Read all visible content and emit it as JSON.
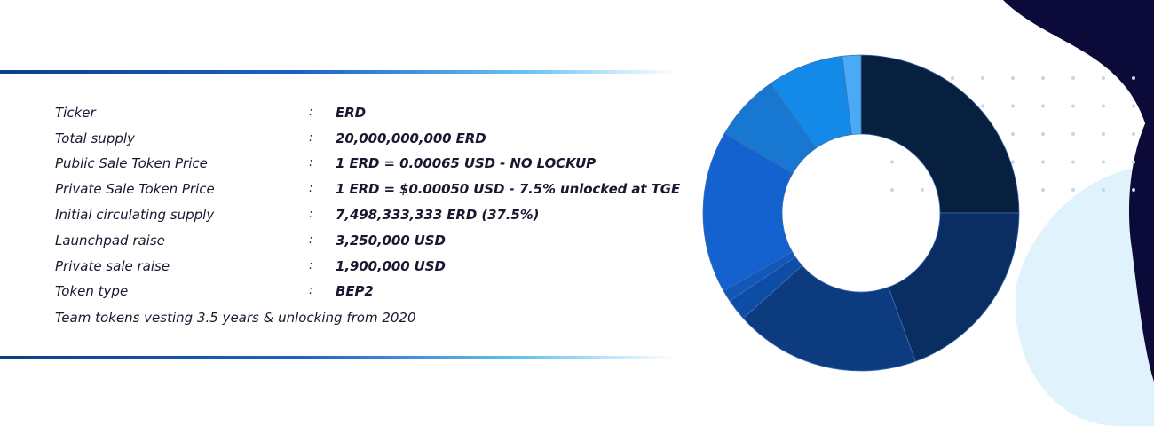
{
  "token_info": {
    "rows": [
      {
        "label": "Ticker",
        "value": "ERD"
      },
      {
        "label": "Total supply",
        "value": "20,000,000,000 ERD"
      },
      {
        "label": "Public Sale Token Price",
        "value": "1 ERD = 0.00065 USD - NO LOCKUP"
      },
      {
        "label": "Private Sale Token Price",
        "value": "1 ERD = $0.00050 USD - 7.5% unlocked at TGE"
      },
      {
        "label": "Initial circulating supply",
        "value": "7,498,333,333 ERD (37.5%)"
      },
      {
        "label": "Launchpad raise",
        "value": "3,250,000 USD"
      },
      {
        "label": "Private sale raise",
        "value": "1,900,000 USD"
      },
      {
        "label": "Token type",
        "value": "BEP2"
      }
    ],
    "separator": ":",
    "note": "Team tokens vesting 3.5 years & unlocking from 2020"
  },
  "colors": {
    "line_start": "#0d3f86",
    "line_end": "#68c3f3",
    "blob_dark": "#0c0a38",
    "blob_light": "#e0f2fb",
    "dots": "#c9d4e8"
  },
  "chart_data": {
    "type": "pie",
    "donut": true,
    "values": [
      25,
      19.4,
      19,
      2.2,
      1.2,
      16.6,
      6.9,
      7.8,
      1.9
    ],
    "colors": [
      "#07203f",
      "#0a2e62",
      "#0c3b7f",
      "#0e4da6",
      "#1258bb",
      "#1462cf",
      "#1877d0",
      "#138ae8",
      "#4aaaf5"
    ]
  }
}
